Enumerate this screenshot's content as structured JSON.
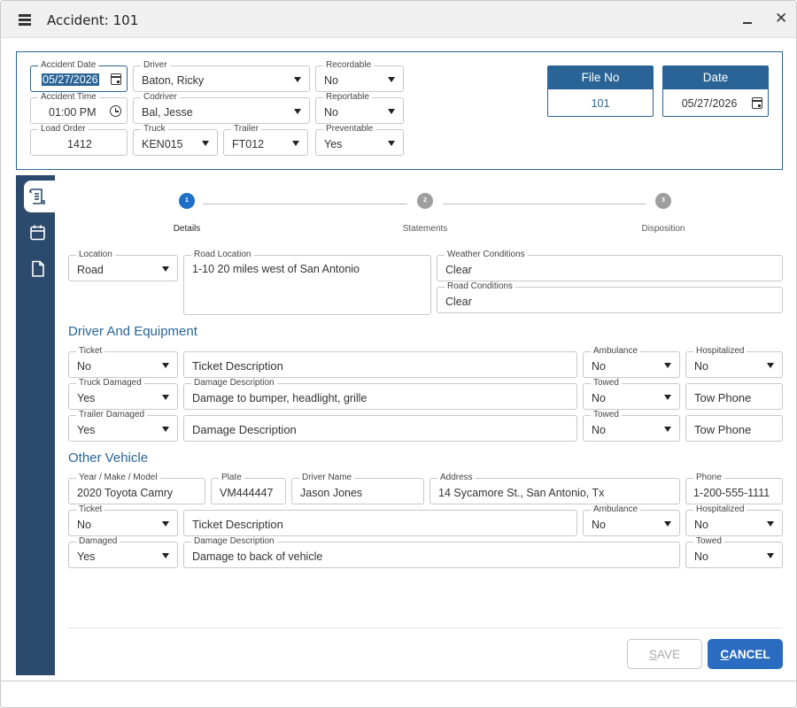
{
  "window": {
    "title": "Accident: 101"
  },
  "header": {
    "accident_date": {
      "label": "Accident Date",
      "value": "05/27/2026"
    },
    "accident_time": {
      "label": "Accident Time",
      "value": "01:00 PM"
    },
    "load_order": {
      "label": "Load Order",
      "value": "1412"
    },
    "driver": {
      "label": "Driver",
      "value": "Baton, Ricky"
    },
    "codriver": {
      "label": "Codriver",
      "value": "Bal, Jesse"
    },
    "truck": {
      "label": "Truck",
      "value": "KEN015"
    },
    "trailer": {
      "label": "Trailer",
      "value": "FT012"
    },
    "recordable": {
      "label": "Recordable",
      "value": "No"
    },
    "reportable": {
      "label": "Reportable",
      "value": "No"
    },
    "preventable": {
      "label": "Preventable",
      "value": "Yes"
    },
    "file_no": {
      "label": "File No",
      "value": "101"
    },
    "date": {
      "label": "Date",
      "value": "05/27/2026"
    }
  },
  "sidebar": {
    "items": [
      {
        "icon": "details-icon"
      },
      {
        "icon": "calendar-icon"
      },
      {
        "icon": "document-icon"
      }
    ]
  },
  "stepper": {
    "steps": [
      {
        "number": "1",
        "label": "Details"
      },
      {
        "number": "2",
        "label": "Statements"
      },
      {
        "number": "3",
        "label": "Disposition"
      }
    ]
  },
  "details": {
    "location": {
      "label": "Location",
      "value": "Road"
    },
    "road_location": {
      "label": "Road Location",
      "value": "1-10 20 miles west of San Antonio"
    },
    "weather_conditions": {
      "label": "Weather Conditions",
      "value": "Clear"
    },
    "road_conditions": {
      "label": "Road Conditions",
      "value": "Clear"
    }
  },
  "driver_equipment": {
    "title": "Driver And Equipment",
    "ticket": {
      "label": "Ticket",
      "value": "No"
    },
    "ticket_description": {
      "placeholder": "Ticket Description"
    },
    "ambulance": {
      "label": "Ambulance",
      "value": "No"
    },
    "hospitalized": {
      "label": "Hospitalized",
      "value": "No"
    },
    "truck_damaged": {
      "label": "Truck Damaged",
      "value": "Yes"
    },
    "damage_description": {
      "label": "Damage Description",
      "value": "Damage to bumper, headlight, grille"
    },
    "towed": {
      "label": "Towed",
      "value": "No"
    },
    "tow_phone": {
      "placeholder": "Tow Phone"
    },
    "trailer_damaged": {
      "label": "Trailer Damaged",
      "value": "Yes"
    },
    "trailer_damage_description": {
      "placeholder": "Damage Description"
    },
    "trailer_towed": {
      "label": "Towed",
      "value": "No"
    },
    "trailer_tow_phone": {
      "placeholder": "Tow Phone"
    }
  },
  "other_vehicle": {
    "title": "Other Vehicle",
    "year_make_model": {
      "label": "Year / Make / Model",
      "value": "2020 Toyota Camry"
    },
    "plate": {
      "label": "Plate",
      "value": "VM444447"
    },
    "driver_name": {
      "label": "Driver Name",
      "value": "Jason Jones"
    },
    "address": {
      "label": "Address",
      "value": "14 Sycamore St., San Antonio, Tx"
    },
    "phone": {
      "label": "Phone",
      "value": "1-200-555-1111"
    },
    "ticket": {
      "label": "Ticket",
      "value": "No"
    },
    "ticket_description": {
      "placeholder": "Ticket Description"
    },
    "ambulance": {
      "label": "Ambulance",
      "value": "No"
    },
    "hospitalized": {
      "label": "Hospitalized",
      "value": "No"
    },
    "damaged": {
      "label": "Damaged",
      "value": "Yes"
    },
    "damage_description": {
      "label": "Damage Description",
      "value": "Damage to back of vehicle"
    },
    "towed": {
      "label": "Towed",
      "value": "No"
    }
  },
  "footer": {
    "save_first": "S",
    "save_rest": "AVE",
    "cancel_first": "C",
    "cancel_rest": "ANCEL"
  },
  "colors": {
    "accent": "#2a6496",
    "sidebar": "#2c4a6b",
    "primary_button": "#2a6cc0",
    "step_active": "#1f6fc5",
    "step_inactive": "#9e9e9e"
  }
}
